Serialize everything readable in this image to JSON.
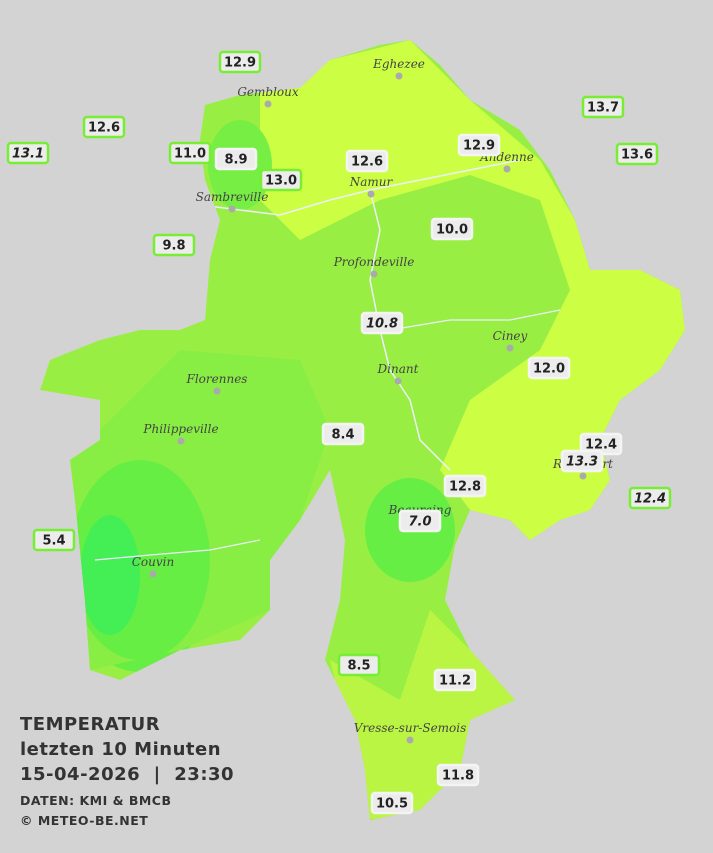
{
  "title": {
    "lines": [
      "TEMPERATUR",
      "letzten 10 Minuten",
      "15-04-2026  |  23:30"
    ],
    "source": "DATEN: KMI & BMCB",
    "copyright": "© METEO-BE.NET"
  },
  "towns": [
    "Eghezee",
    "Gembloux",
    "Andenne",
    "Namur",
    "Sambreville",
    "Profondeville",
    "Ciney",
    "Dinant",
    "Florennes",
    "Philippeville",
    "Beauraing",
    "Rochefort",
    "Couvin",
    "Vresse-sur-Semois"
  ],
  "readings": [
    "12.9",
    "12.6",
    "13.1",
    "11.0",
    "8.9",
    "13.0",
    "12.6",
    "12.9",
    "13.7",
    "13.6",
    "9.8",
    "10.0",
    "10.8",
    "12.0",
    "8.4",
    "12.8",
    "12.4",
    "13.3",
    "12.4",
    "7.0",
    "5.4",
    "8.5",
    "11.2",
    "11.8",
    "10.5"
  ]
}
